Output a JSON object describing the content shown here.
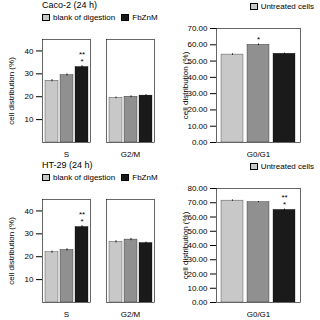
{
  "chart_data": [
    {
      "type": "bar",
      "title": "Caco-2 (24 h)",
      "categories": [
        "S",
        "G2/M"
      ],
      "series": [
        {
          "name": "blank of digestion",
          "color": "#c8c8c8",
          "values": [
            27.0,
            19.5
          ],
          "errors": [
            0.5,
            0.4
          ]
        },
        {
          "color": "#909090",
          "values": [
            29.5,
            20.0
          ],
          "errors": [
            0.5,
            0.4
          ]
        },
        {
          "name": "FbZnM",
          "color": "#1a1a1a",
          "values": [
            33.0,
            20.5
          ],
          "errors": [
            0.6,
            0.4
          ],
          "annotations": [
            [
              "**",
              "*"
            ],
            null
          ]
        }
      ],
      "ylim": [
        0,
        45
      ],
      "yticks": [
        10,
        20,
        30,
        40
      ],
      "ylabel": "cell distribution (%)",
      "legend": "upper left"
    },
    {
      "type": "bar",
      "categories": [
        "G0/G1"
      ],
      "series": [
        {
          "name": "Untreated cells",
          "color": "#c8c8c8",
          "values": [
            54.0
          ],
          "errors": [
            0.5
          ]
        },
        {
          "color": "#909090",
          "values": [
            60.0
          ],
          "errors": [
            0.5
          ],
          "annotations": [
            [
              "*"
            ]
          ]
        },
        {
          "color": "#1a1a1a",
          "values": [
            54.5
          ],
          "errors": [
            0.4
          ]
        }
      ],
      "ylim": [
        0,
        70
      ],
      "yticks": [
        {
          "value": 0,
          "label": "0.00"
        },
        {
          "value": 10,
          "label": "10.00"
        },
        {
          "value": 20,
          "label": "20.00"
        },
        {
          "value": 30,
          "label": "30.00"
        },
        {
          "value": 40,
          "label": "40.00"
        },
        {
          "value": 50,
          "label": "50.00"
        },
        {
          "value": 60,
          "label": "60.00"
        },
        {
          "value": 70,
          "label": "70.00"
        }
      ],
      "ylabel": "cell distribution (%)",
      "legend": "upper right"
    },
    {
      "type": "bar",
      "title": "HT-29 (24 h)",
      "categories": [
        "S",
        "G2/M"
      ],
      "series": [
        {
          "name": "blank of digestion",
          "color": "#c8c8c8",
          "values": [
            22.0,
            26.5
          ],
          "errors": [
            0.5,
            0.5
          ]
        },
        {
          "color": "#909090",
          "values": [
            23.0,
            27.5
          ],
          "errors": [
            0.5,
            0.5
          ]
        },
        {
          "name": "FbZnM",
          "color": "#1a1a1a",
          "values": [
            33.0,
            26.0
          ],
          "errors": [
            0.6,
            0.4
          ],
          "annotations": [
            [
              "**",
              "*"
            ],
            null
          ]
        }
      ],
      "ylim": [
        0,
        45
      ],
      "yticks": [
        10,
        20,
        30,
        40
      ],
      "ylabel": "cell distribution (%)",
      "legend": "upper left"
    },
    {
      "type": "bar",
      "categories": [
        "G0/G1"
      ],
      "series": [
        {
          "name": "Untreated cells",
          "color": "#c8c8c8",
          "values": [
            71.5
          ],
          "errors": [
            0.5
          ]
        },
        {
          "color": "#909090",
          "values": [
            70.5
          ],
          "errors": [
            0.4
          ]
        },
        {
          "color": "#1a1a1a",
          "values": [
            65.0
          ],
          "errors": [
            0.6
          ],
          "annotations": [
            [
              "**",
              "*"
            ]
          ]
        }
      ],
      "ylim": [
        0,
        80
      ],
      "yticks": [
        {
          "value": 0,
          "label": "0.00"
        },
        {
          "value": 10,
          "label": "10.00"
        },
        {
          "value": 20,
          "label": "20.00"
        },
        {
          "value": 30,
          "label": "30.00"
        },
        {
          "value": 40,
          "label": "40.00"
        },
        {
          "value": 50,
          "label": "50.00"
        },
        {
          "value": 60,
          "label": "60.00"
        },
        {
          "value": 70,
          "label": "70.00"
        },
        {
          "value": 80,
          "label": "80.00"
        }
      ],
      "ylabel": "cell distribution (%)",
      "legend": "upper right"
    }
  ]
}
